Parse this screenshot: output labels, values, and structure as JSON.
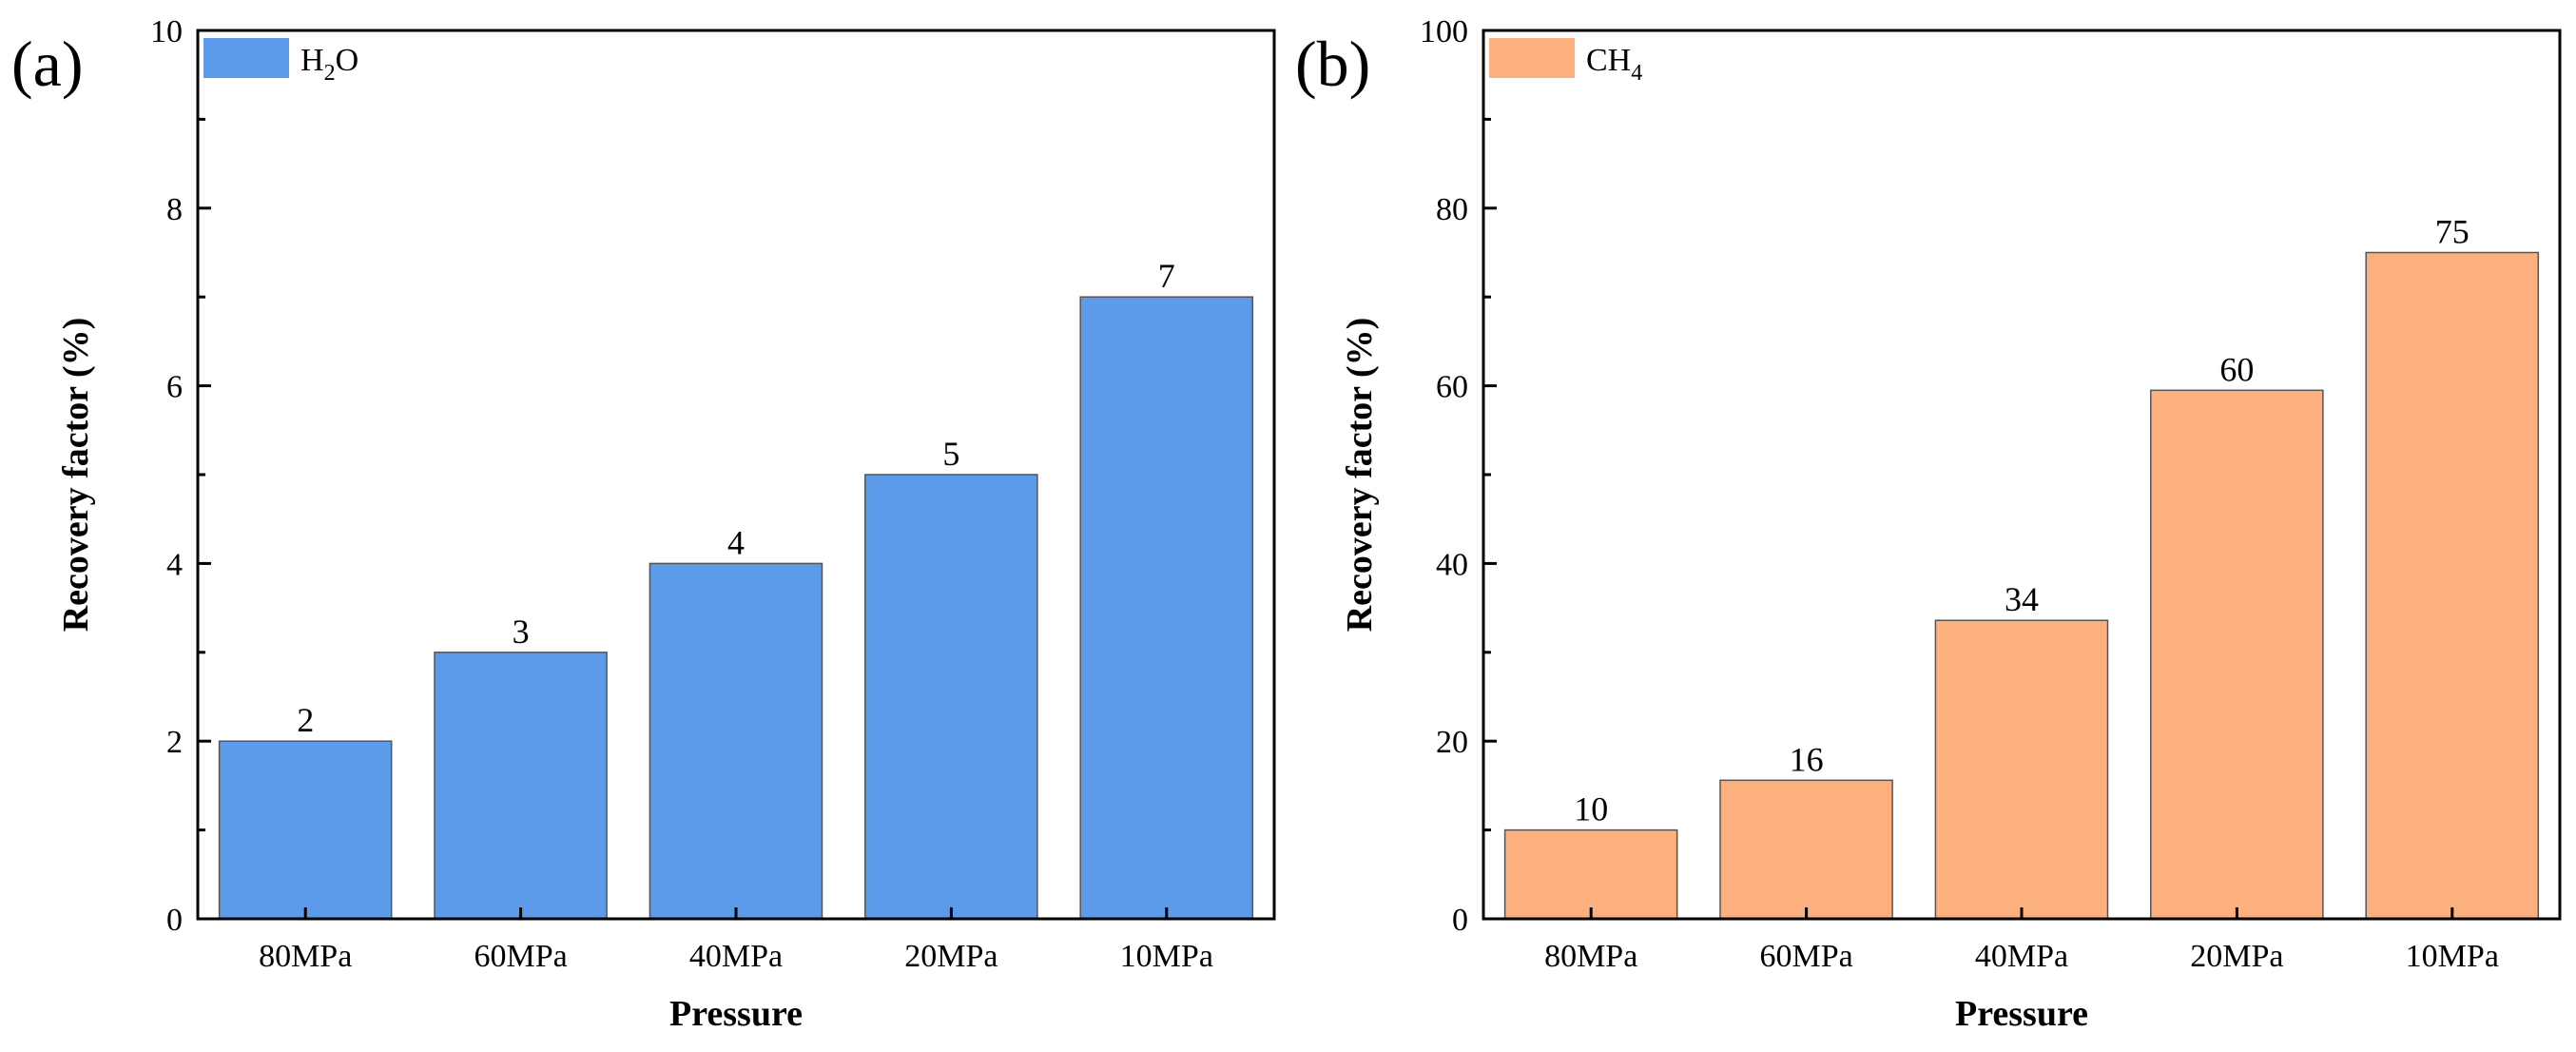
{
  "chart_data": [
    {
      "type": "bar",
      "panel_label": "(a)",
      "categories": [
        "80MPa",
        "60MPa",
        "40MPa",
        "20MPa",
        "10MPa"
      ],
      "values": [
        2,
        3,
        4,
        5,
        7
      ],
      "data_labels": [
        "2",
        "3",
        "4",
        "5",
        "7"
      ],
      "series_name": "H2O",
      "legend": {
        "base": "H",
        "sub": "2",
        "tail": "O"
      },
      "xlabel": "Pressure",
      "ylabel": "Recovery factor (%)",
      "ylim": [
        0,
        10
      ],
      "yticks": [
        0,
        2,
        4,
        6,
        8,
        10
      ],
      "color": "#5b9be9",
      "legend_position": "top-left",
      "grid": false
    },
    {
      "type": "bar",
      "panel_label": "(b)",
      "categories": [
        "80MPa",
        "60MPa",
        "40MPa",
        "20MPa",
        "10MPa"
      ],
      "values": [
        10,
        15.6,
        33.6,
        59.5,
        75
      ],
      "data_labels": [
        "10",
        "16",
        "34",
        "60",
        "75"
      ],
      "series_name": "CH4",
      "legend": {
        "base": "CH",
        "sub": "4",
        "tail": ""
      },
      "xlabel": "Pressure",
      "ylabel": "Recovery factor (%)",
      "ylim": [
        0,
        100
      ],
      "yticks": [
        0,
        20,
        40,
        60,
        80,
        100
      ],
      "color": "#fbb07e",
      "legend_position": "top-left",
      "grid": false
    }
  ]
}
